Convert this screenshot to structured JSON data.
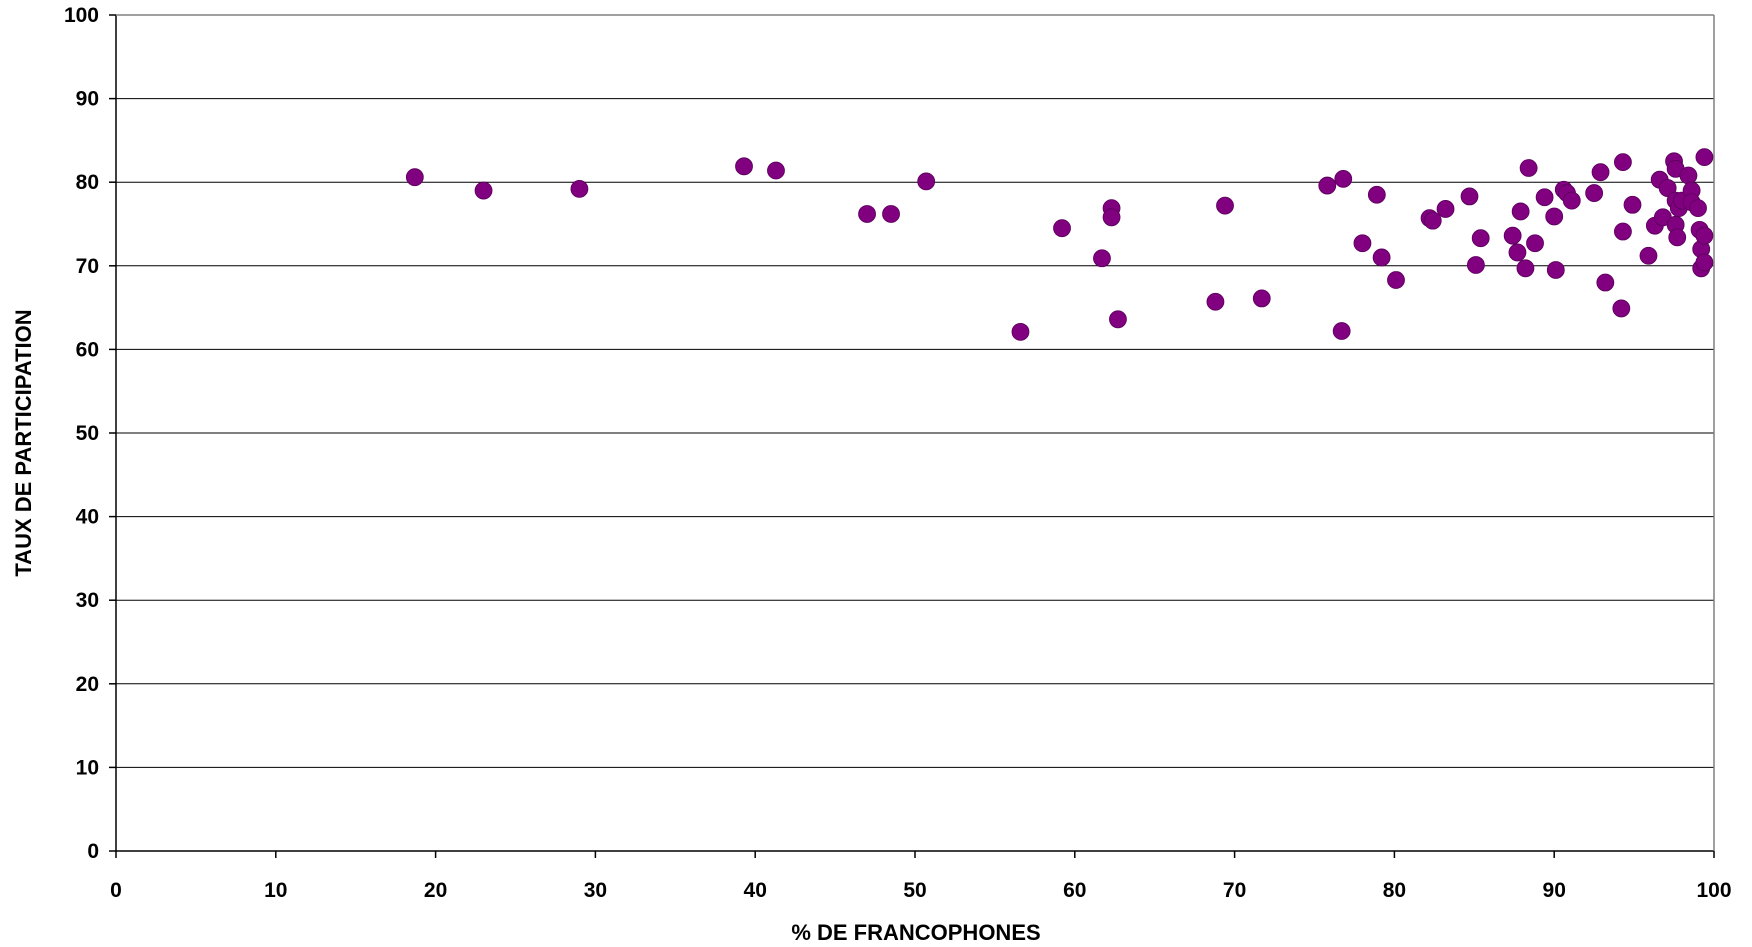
{
  "chart_data": {
    "type": "scatter",
    "xlabel": "% DE FRANCOPHONES",
    "ylabel": "TAUX DE PARTICIPATION",
    "xlim": [
      0,
      100
    ],
    "ylim": [
      0,
      100
    ],
    "x_ticks": [
      "0",
      "10",
      "20",
      "30",
      "40",
      "50",
      "60",
      "70",
      "80",
      "90",
      "100"
    ],
    "y_ticks": [
      "0",
      "10",
      "20",
      "30",
      "40",
      "50",
      "60",
      "70",
      "80",
      "90",
      "100"
    ],
    "grid": "horizontal",
    "legend": "none",
    "marker_color": "#800080",
    "points": [
      {
        "x": 18.7,
        "y": 80.6
      },
      {
        "x": 23.0,
        "y": 79.0
      },
      {
        "x": 29.0,
        "y": 79.2
      },
      {
        "x": 39.3,
        "y": 81.9
      },
      {
        "x": 41.3,
        "y": 81.4
      },
      {
        "x": 47.0,
        "y": 76.2
      },
      {
        "x": 48.5,
        "y": 76.2
      },
      {
        "x": 50.7,
        "y": 80.1
      },
      {
        "x": 56.6,
        "y": 62.1
      },
      {
        "x": 59.2,
        "y": 74.5
      },
      {
        "x": 61.7,
        "y": 70.9
      },
      {
        "x": 62.3,
        "y": 76.9
      },
      {
        "x": 62.3,
        "y": 75.8
      },
      {
        "x": 62.7,
        "y": 63.6
      },
      {
        "x": 68.8,
        "y": 65.7
      },
      {
        "x": 69.4,
        "y": 77.2
      },
      {
        "x": 71.7,
        "y": 66.1
      },
      {
        "x": 75.8,
        "y": 79.6
      },
      {
        "x": 76.8,
        "y": 80.4
      },
      {
        "x": 76.7,
        "y": 62.2
      },
      {
        "x": 78.0,
        "y": 72.7
      },
      {
        "x": 78.9,
        "y": 78.5
      },
      {
        "x": 79.2,
        "y": 71.0
      },
      {
        "x": 80.1,
        "y": 68.3
      },
      {
        "x": 82.2,
        "y": 75.7
      },
      {
        "x": 82.4,
        "y": 75.4
      },
      {
        "x": 83.2,
        "y": 76.8
      },
      {
        "x": 84.7,
        "y": 78.3
      },
      {
        "x": 85.1,
        "y": 70.1
      },
      {
        "x": 85.4,
        "y": 73.3
      },
      {
        "x": 87.4,
        "y": 73.6
      },
      {
        "x": 87.7,
        "y": 71.6
      },
      {
        "x": 87.9,
        "y": 76.5
      },
      {
        "x": 88.2,
        "y": 69.7
      },
      {
        "x": 88.4,
        "y": 81.7
      },
      {
        "x": 88.8,
        "y": 72.7
      },
      {
        "x": 89.4,
        "y": 78.2
      },
      {
        "x": 90.0,
        "y": 75.9
      },
      {
        "x": 90.1,
        "y": 69.5
      },
      {
        "x": 90.6,
        "y": 79.1
      },
      {
        "x": 90.8,
        "y": 78.7
      },
      {
        "x": 91.1,
        "y": 77.8
      },
      {
        "x": 92.5,
        "y": 78.7
      },
      {
        "x": 92.9,
        "y": 81.2
      },
      {
        "x": 93.2,
        "y": 68.0
      },
      {
        "x": 94.2,
        "y": 64.9
      },
      {
        "x": 94.3,
        "y": 82.4
      },
      {
        "x": 94.3,
        "y": 74.1
      },
      {
        "x": 94.9,
        "y": 77.3
      },
      {
        "x": 95.9,
        "y": 71.2
      },
      {
        "x": 96.3,
        "y": 74.8
      },
      {
        "x": 96.6,
        "y": 80.3
      },
      {
        "x": 96.8,
        "y": 75.8
      },
      {
        "x": 97.1,
        "y": 79.3
      },
      {
        "x": 97.5,
        "y": 82.5
      },
      {
        "x": 97.6,
        "y": 81.6
      },
      {
        "x": 97.6,
        "y": 77.8
      },
      {
        "x": 97.6,
        "y": 74.9
      },
      {
        "x": 97.7,
        "y": 73.4
      },
      {
        "x": 97.8,
        "y": 76.9
      },
      {
        "x": 98.0,
        "y": 77.8
      },
      {
        "x": 98.4,
        "y": 80.8
      },
      {
        "x": 98.6,
        "y": 79.0
      },
      {
        "x": 98.6,
        "y": 77.6
      },
      {
        "x": 99.0,
        "y": 76.9
      },
      {
        "x": 99.1,
        "y": 74.3
      },
      {
        "x": 99.2,
        "y": 72.0
      },
      {
        "x": 99.2,
        "y": 69.7
      },
      {
        "x": 99.4,
        "y": 73.6
      },
      {
        "x": 99.4,
        "y": 70.4
      },
      {
        "x": 99.4,
        "y": 83.0
      }
    ]
  }
}
